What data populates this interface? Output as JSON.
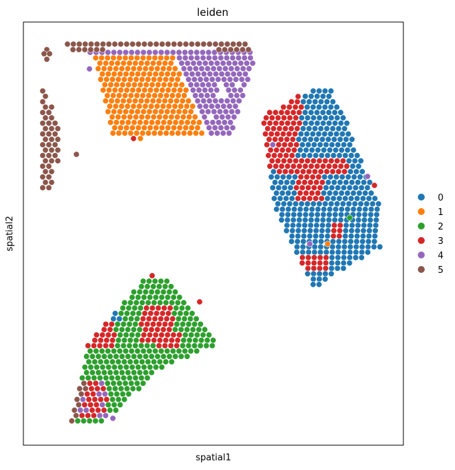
{
  "chart_data": {
    "type": "scatter",
    "title": "leiden",
    "xlabel": "spatial1",
    "ylabel": "spatial2",
    "xticks": false,
    "yticks": false,
    "grid": false,
    "legend_position": "right",
    "legend": [
      {
        "label": "0",
        "color": "#1f77b4"
      },
      {
        "label": "1",
        "color": "#ff7f0e"
      },
      {
        "label": "2",
        "color": "#2ca02c"
      },
      {
        "label": "3",
        "color": "#d62728"
      },
      {
        "label": "4",
        "color": "#9467bd"
      },
      {
        "label": "5",
        "color": "#8c564b"
      }
    ],
    "regions": {
      "orange": {
        "cluster": "1",
        "cy": [
          84,
          197
        ],
        "xl": [
          139,
          165
        ],
        "xr": [
          252,
          300
        ]
      },
      "purple_band": {
        "cluster": "4",
        "cy": [
          76,
          186
        ],
        "xl": [
          245,
          298
        ],
        "xr": [
          370,
          335
        ]
      },
      "top_brown_row": {
        "cluster": "5",
        "cy": [
          64,
          72
        ],
        "x": [
          98,
          360
        ]
      },
      "left_strip": {
        "cluster": "5",
        "cy": [
          72,
          278
        ],
        "x": [
          62,
          88
        ]
      },
      "blue_region": {
        "cluster": "0",
        "cy": [
          132,
          415
        ],
        "center_x": 470
      },
      "green_region": {
        "cluster": "2",
        "cy": [
          408,
          612
        ],
        "center_x": 205
      }
    },
    "scattered_points": [
      {
        "x": 111,
        "y": 224,
        "cluster": "5"
      },
      {
        "x": 164,
        "y": 607,
        "cluster": "4"
      },
      {
        "x": 221,
        "y": 400,
        "cluster": "3"
      },
      {
        "x": 290,
        "y": 438,
        "cluster": "3"
      },
      {
        "x": 534,
        "y": 256,
        "cluster": "4"
      },
      {
        "x": 544,
        "y": 269,
        "cluster": "3"
      },
      {
        "x": 508,
        "y": 316,
        "cluster": "2"
      },
      {
        "x": 450,
        "y": 354,
        "cluster": "4"
      },
      {
        "x": 476,
        "y": 354,
        "cluster": "1"
      },
      {
        "x": 433,
        "y": 140,
        "cluster": "3"
      },
      {
        "x": 194,
        "y": 201,
        "cluster": "3"
      },
      {
        "x": 204,
        "y": 201,
        "cluster": "1"
      }
    ]
  }
}
